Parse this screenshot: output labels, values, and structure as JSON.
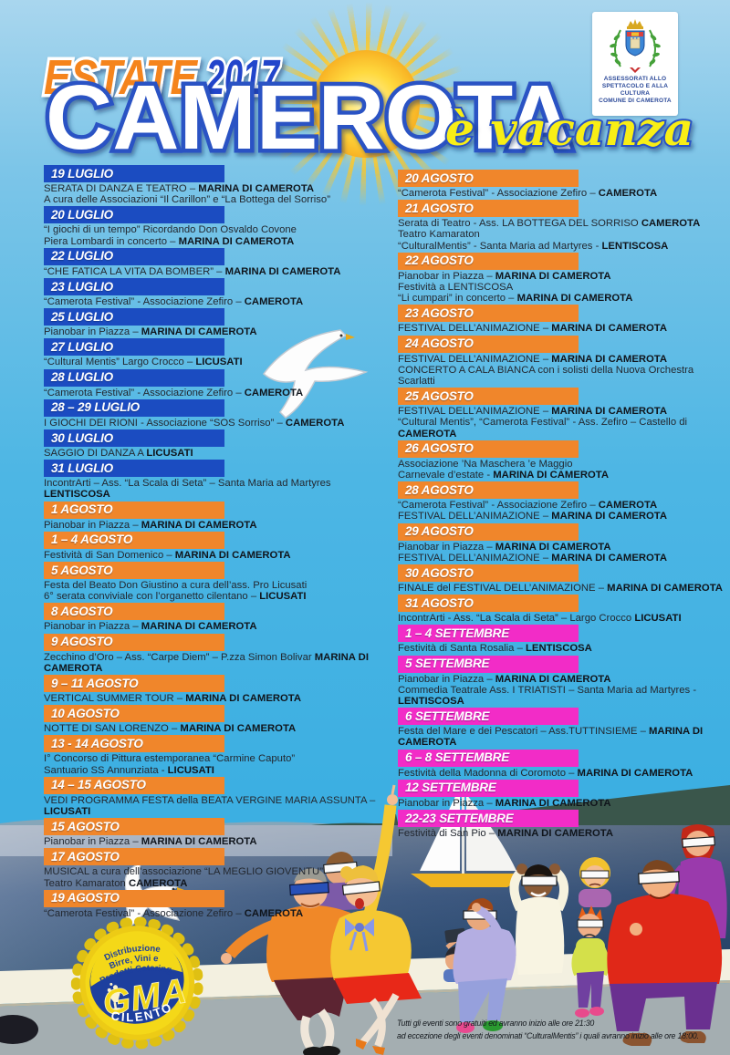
{
  "header": {
    "estate": "ESTATE",
    "year": "2017",
    "city": "CAMEROTA",
    "tagline": "è vacanza",
    "crest_caption1": "ASSESSORATI ALLO",
    "crest_caption2": "SPETTACOLO E ALLA CULTURA",
    "crest_caption3": "COMUNE DI CAMEROTA"
  },
  "colors": {
    "banner_blue": "#1b4cc1",
    "banner_orange": "#f0862b",
    "banner_magenta": "#f22cc7",
    "title_orange": "#f5841f",
    "title_blue": "#2344cb",
    "title_outline_blue": "#2c53c4",
    "tagline_yellow": "#f8ee15",
    "sky_top": "#a9d6ee",
    "sky_bottom": "#3cafe2",
    "sea_dark": "#2c4d73",
    "text_dark": "#232830"
  },
  "columns": {
    "left": [
      {
        "date": "19 LUGLIO",
        "color": "blue",
        "lines": [
          [
            {
              "t": "SERATA DI DANZA E TEATRO – "
            },
            {
              "t": "MARINA DI CAMEROTA",
              "b": true
            }
          ],
          [
            {
              "t": "A cura delle Associazioni “Il Carillon” e “La Bottega del Sorriso”"
            }
          ]
        ]
      },
      {
        "date": "20 LUGLIO",
        "color": "blue",
        "lines": [
          [
            {
              "t": "“I giochi di un tempo” Ricordando Don Osvaldo Covone"
            }
          ],
          [
            {
              "t": "Piera Lombardi in concerto – "
            },
            {
              "t": "MARINA DI CAMEROTA",
              "b": true
            }
          ]
        ]
      },
      {
        "date": "22 LUGLIO",
        "color": "blue",
        "lines": [
          [
            {
              "t": "“CHE FATICA LA VITA DA BOMBER” – "
            },
            {
              "t": "MARINA DI CAMEROTA",
              "b": true
            }
          ]
        ]
      },
      {
        "date": "23 LUGLIO",
        "color": "blue",
        "lines": [
          [
            {
              "t": "“Camerota Festival” - Associazione Zefiro – "
            },
            {
              "t": "CAMEROTA",
              "b": true
            }
          ]
        ]
      },
      {
        "date": "25 LUGLIO",
        "color": "blue",
        "lines": [
          [
            {
              "t": "Pianobar in Piazza – "
            },
            {
              "t": "MARINA DI CAMEROTA",
              "b": true
            }
          ]
        ]
      },
      {
        "date": "27 LUGLIO",
        "color": "blue",
        "lines": [
          [
            {
              "t": "“Cultural Mentis” Largo Crocco – "
            },
            {
              "t": "LICUSATI",
              "b": true
            }
          ]
        ]
      },
      {
        "date": "28 LUGLIO",
        "color": "blue",
        "lines": [
          [
            {
              "t": "“Camerota Festival” - Associazione Zefiro – "
            },
            {
              "t": "CAMEROTA",
              "b": true
            }
          ]
        ]
      },
      {
        "date": "28 – 29 LUGLIO",
        "color": "blue",
        "lines": [
          [
            {
              "t": "I GIOCHI DEI RIONI - Associazione “SOS Sorriso” – "
            },
            {
              "t": "CAMEROTA",
              "b": true
            }
          ]
        ]
      },
      {
        "date": "30 LUGLIO",
        "color": "blue",
        "lines": [
          [
            {
              "t": "SAGGIO DI DANZA A "
            },
            {
              "t": "LICUSATI",
              "b": true
            }
          ]
        ]
      },
      {
        "date": "31 LUGLIO",
        "color": "blue",
        "lines": [
          [
            {
              "t": "IncontrArti – Ass. “La Scala di Seta” – Santa Maria ad Martyres "
            },
            {
              "t": "LENTISCOSA",
              "b": true
            }
          ]
        ]
      },
      {
        "date": "1 AGOSTO",
        "color": "orange",
        "lines": [
          [
            {
              "t": "Pianobar in Piazza – "
            },
            {
              "t": "MARINA DI CAMEROTA",
              "b": true
            }
          ]
        ]
      },
      {
        "date": "1 – 4 AGOSTO",
        "color": "orange",
        "lines": [
          [
            {
              "t": "Festività di San Domenico – "
            },
            {
              "t": "MARINA DI CAMEROTA",
              "b": true
            }
          ]
        ]
      },
      {
        "date": "5 AGOSTO",
        "color": "orange",
        "lines": [
          [
            {
              "t": "Festa del Beato Don Giustino a cura dell’ass. Pro Licusati"
            }
          ],
          [
            {
              "t": "6° serata conviviale con l’organetto cilentano – "
            },
            {
              "t": "LICUSATI",
              "b": true
            }
          ]
        ]
      },
      {
        "date": "8 AGOSTO",
        "color": "orange",
        "lines": [
          [
            {
              "t": "Pianobar in Piazza – "
            },
            {
              "t": "MARINA DI CAMEROTA",
              "b": true
            }
          ]
        ]
      },
      {
        "date": "9 AGOSTO",
        "color": "orange",
        "lines": [
          [
            {
              "t": "Zecchino d’Oro – Ass. “Carpe Diem” – P.zza Simon Bolivar "
            },
            {
              "t": "MARINA DI CAMEROTA",
              "b": true
            }
          ]
        ]
      },
      {
        "date": "9 – 11 AGOSTO",
        "color": "orange",
        "lines": [
          [
            {
              "t": "VERTICAL SUMMER TOUR – "
            },
            {
              "t": "MARINA DI CAMEROTA",
              "b": true
            }
          ]
        ]
      },
      {
        "date": "10 AGOSTO",
        "color": "orange",
        "lines": [
          [
            {
              "t": "NOTTE DI SAN LORENZO – "
            },
            {
              "t": "MARINA DI CAMEROTA",
              "b": true
            }
          ]
        ]
      },
      {
        "date": "13 - 14 AGOSTO",
        "color": "orange",
        "lines": [
          [
            {
              "t": "I° Concorso di Pittura estemporanea “Carmine Caputo”"
            }
          ],
          [
            {
              "t": "Santuario SS Annunziata - "
            },
            {
              "t": "LICUSATI",
              "b": true
            }
          ]
        ]
      },
      {
        "date": "14 – 15 AGOSTO",
        "color": "orange",
        "lines": [
          [
            {
              "t": "VEDI PROGRAMMA FESTA della BEATA VERGINE MARIA ASSUNTA – "
            },
            {
              "t": "LICUSATI",
              "b": true
            }
          ]
        ]
      },
      {
        "date": "15 AGOSTO",
        "color": "orange",
        "lines": [
          [
            {
              "t": "Pianobar in Piazza – "
            },
            {
              "t": "MARINA DI CAMEROTA",
              "b": true
            }
          ]
        ]
      },
      {
        "date": "17 AGOSTO",
        "color": "orange",
        "lines": [
          [
            {
              "t": "MUSICAL a cura dell’associazione “LA MEGLIO GIOVENTU”"
            }
          ],
          [
            {
              "t": "Teatro Kamaraton "
            },
            {
              "t": "CAMEROTA",
              "b": true
            }
          ]
        ]
      },
      {
        "date": "19 AGOSTO",
        "color": "orange",
        "lines": [
          [
            {
              "t": "“Camerota Festival” - Associazione Zefiro – "
            },
            {
              "t": "CAMEROTA",
              "b": true
            }
          ]
        ]
      }
    ],
    "right": [
      {
        "date": "20 AGOSTO",
        "color": "orange",
        "lines": [
          [
            {
              "t": "“Camerota Festival” - Associazione Zefiro – "
            },
            {
              "t": "CAMEROTA",
              "b": true
            }
          ]
        ]
      },
      {
        "date": "21 AGOSTO",
        "color": "orange",
        "lines": [
          [
            {
              "t": "Serata di Teatro - Ass. LA BOTTEGA DEL SORRISO "
            },
            {
              "t": "CAMEROTA",
              "b": true
            },
            {
              "t": " Teatro Kamaraton"
            }
          ],
          [
            {
              "t": "“CulturalMentis” - Santa Maria ad Martyres - "
            },
            {
              "t": "LENTISCOSA",
              "b": true
            }
          ]
        ]
      },
      {
        "date": "22 AGOSTO",
        "color": "orange",
        "lines": [
          [
            {
              "t": "Pianobar in Piazza – "
            },
            {
              "t": "MARINA DI CAMEROTA",
              "b": true
            }
          ],
          [
            {
              "t": "Festività a LENTISCOSA"
            }
          ],
          [
            {
              "t": "“Li cumpari” in concerto – "
            },
            {
              "t": "MARINA DI CAMEROTA",
              "b": true
            }
          ]
        ]
      },
      {
        "date": "23 AGOSTO",
        "color": "orange",
        "lines": [
          [
            {
              "t": "FESTIVAL DELL’ANIMAZIONE – "
            },
            {
              "t": "MARINA DI CAMEROTA",
              "b": true
            }
          ]
        ]
      },
      {
        "date": "24 AGOSTO",
        "color": "orange",
        "lines": [
          [
            {
              "t": "FESTIVAL DELL’ANIMAZIONE – "
            },
            {
              "t": "MARINA DI CAMEROTA",
              "b": true
            }
          ],
          [
            {
              "t": "CONCERTO A CALA BIANCA con i solisti della Nuova Orchestra Scarlatti"
            }
          ]
        ]
      },
      {
        "date": "25 AGOSTO",
        "color": "orange",
        "lines": [
          [
            {
              "t": "FESTIVAL DELL’ANIMAZIONE – "
            },
            {
              "t": "MARINA DI CAMEROTA",
              "b": true
            }
          ],
          [
            {
              "t": "“Cultural Mentis”, “Camerota Festival” - Ass. Zefiro – Castello di "
            },
            {
              "t": "CAMEROTA",
              "b": true
            }
          ]
        ]
      },
      {
        "date": "26 AGOSTO",
        "color": "orange",
        "lines": [
          [
            {
              "t": "Associazione ’Na Maschera ’e Maggio"
            }
          ],
          [
            {
              "t": "Carnevale d’estate - "
            },
            {
              "t": "MARINA DI CAMEROTA",
              "b": true
            }
          ]
        ]
      },
      {
        "date": "28 AGOSTO",
        "color": "orange",
        "lines": [
          [
            {
              "t": "“Camerota Festival” - Associazione Zefiro – "
            },
            {
              "t": "CAMEROTA",
              "b": true
            }
          ],
          [
            {
              "t": "FESTIVAL DELL’ANIMAZIONE – "
            },
            {
              "t": "MARINA DI CAMEROTA",
              "b": true
            }
          ]
        ]
      },
      {
        "date": "29 AGOSTO",
        "color": "orange",
        "lines": [
          [
            {
              "t": "Pianobar in Piazza – "
            },
            {
              "t": "MARINA DI CAMEROTA",
              "b": true
            }
          ],
          [
            {
              "t": "FESTIVAL DELL’ANIMAZIONE – "
            },
            {
              "t": "MARINA DI CAMEROTA",
              "b": true
            }
          ]
        ]
      },
      {
        "date": "30 AGOSTO",
        "color": "orange",
        "lines": [
          [
            {
              "t": "FINALE del FESTIVAL DELL’ANIMAZIONE – "
            },
            {
              "t": "MARINA DI CAMEROTA",
              "b": true
            }
          ]
        ]
      },
      {
        "date": "31 AGOSTO",
        "color": "orange",
        "lines": [
          [
            {
              "t": "IncontrArti - Ass. “La Scala di Seta” – Largo Crocco "
            },
            {
              "t": "LICUSATI",
              "b": true
            }
          ]
        ]
      },
      {
        "date": "1 – 4 SETTEMBRE",
        "color": "magenta",
        "lines": [
          [
            {
              "t": "Festività di Santa Rosalia – "
            },
            {
              "t": "LENTISCOSA",
              "b": true
            }
          ]
        ]
      },
      {
        "date": "5 SETTEMBRE",
        "color": "magenta",
        "lines": [
          [
            {
              "t": "Pianobar in Piazza – "
            },
            {
              "t": "MARINA DI CAMEROTA",
              "b": true
            }
          ],
          [
            {
              "t": "Commedia Teatrale Ass. I TRIATISTI – Santa Maria ad Martyres - "
            },
            {
              "t": "LENTISCOSA",
              "b": true
            }
          ]
        ]
      },
      {
        "date": "6 SETTEMBRE",
        "color": "magenta",
        "lines": [
          [
            {
              "t": "Festa del Mare e dei Pescatori – Ass.TUTTINSIEME – "
            },
            {
              "t": "MARINA DI CAMEROTA",
              "b": true
            }
          ]
        ]
      },
      {
        "date": "6 – 8 SETTEMBRE",
        "color": "magenta",
        "lines": [
          [
            {
              "t": "Festività della Madonna di Coromoto – "
            },
            {
              "t": "MARINA DI CAMEROTA",
              "b": true
            }
          ]
        ]
      },
      {
        "date": "12 SETTEMBRE",
        "color": "magenta",
        "lines": [
          [
            {
              "t": "Pianobar in Piazza – "
            },
            {
              "t": "MARINA DI CAMEROTA",
              "b": true
            }
          ]
        ]
      },
      {
        "date": "22-23 SETTEMBRE",
        "color": "magenta",
        "lines": [
          [
            {
              "t": "Festività di San Pio – "
            },
            {
              "t": "MARINA DI CAMEROTA",
              "b": true
            }
          ]
        ]
      }
    ]
  },
  "cap_logo": {
    "arc1": "Distribuzione",
    "arc2": "Birre, Vini e",
    "arc3": "Prodotti Catering",
    "brand": "GMA",
    "region": "CILENTO"
  },
  "footer": {
    "line1": "Tutti gli eventi sono gratuiti ed avranno inizio alle ore 21:30",
    "line2": "ad eccezione degli eventi denominati “CulturalMentis” i quali avranno inizio alle ore 18:00."
  }
}
